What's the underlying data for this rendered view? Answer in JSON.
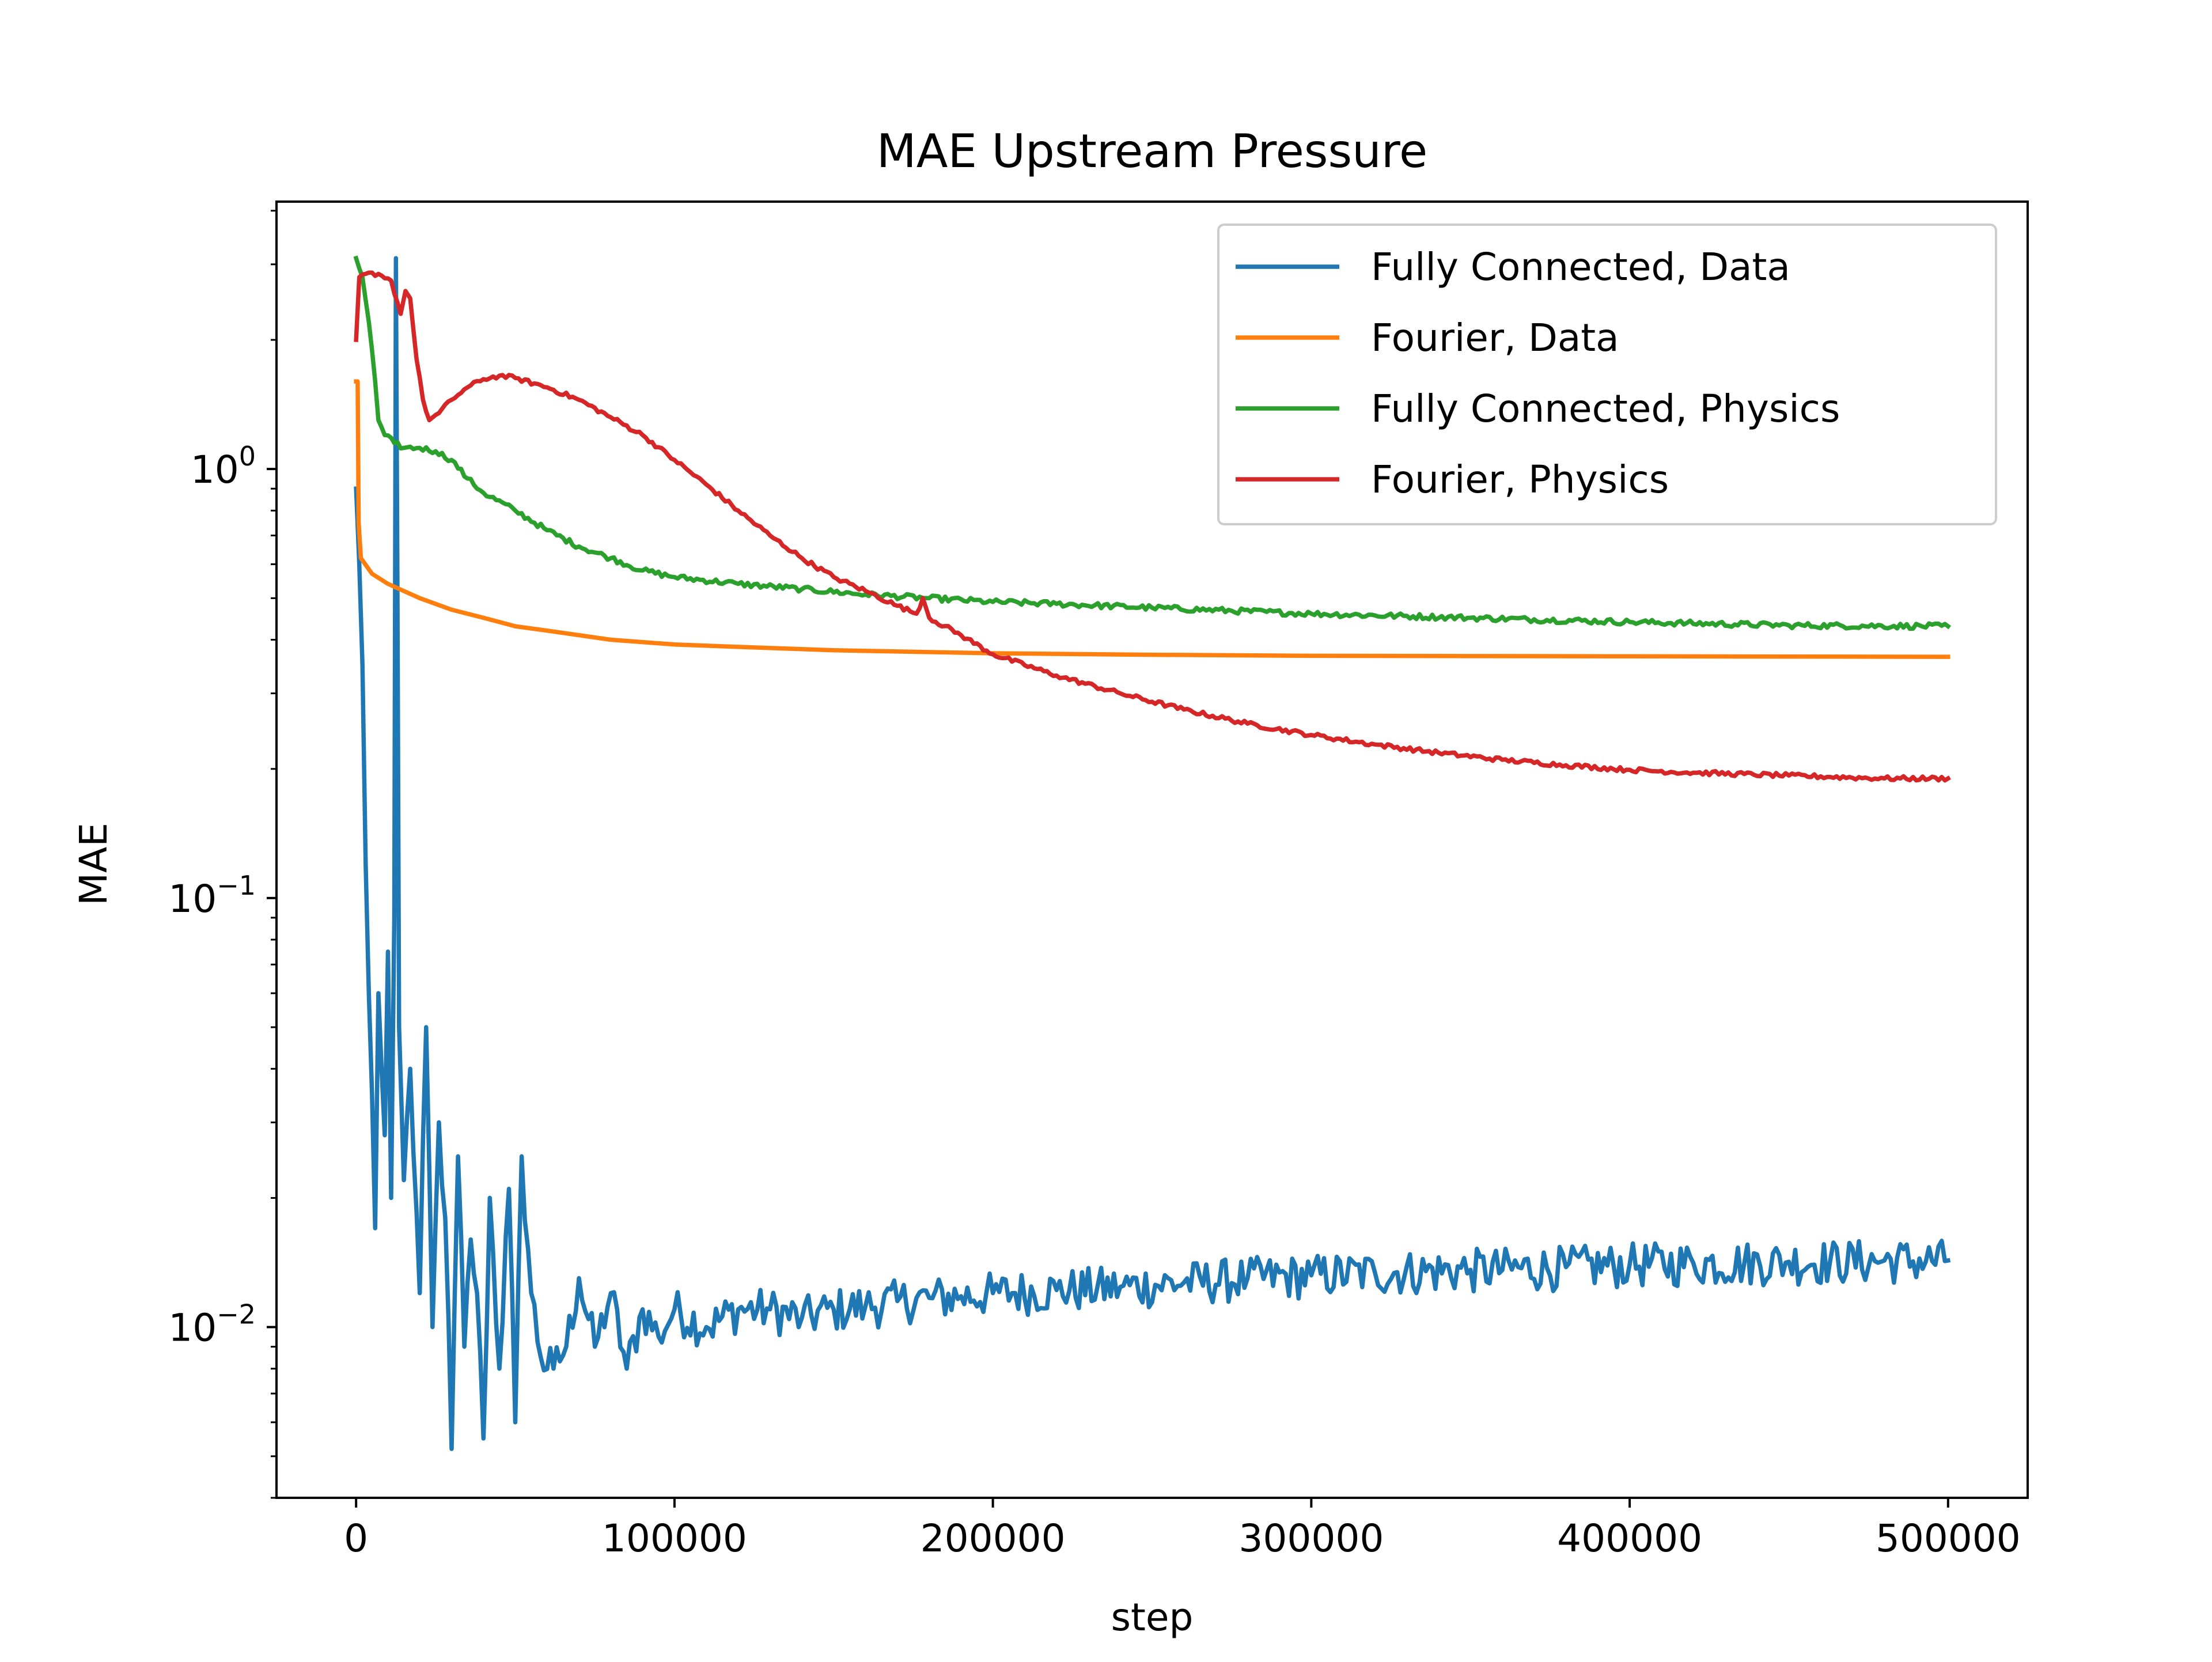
{
  "chart_data": {
    "type": "line",
    "title": "MAE Upstream Pressure",
    "xlabel": "step",
    "ylabel": "MAE",
    "xscale": "linear",
    "yscale": "log",
    "xlim": [
      -25000,
      525000
    ],
    "ylim": [
      0.004,
      4.2
    ],
    "x_ticks": [
      0,
      100000,
      200000,
      300000,
      400000,
      500000
    ],
    "x_tick_labels": [
      "0",
      "100000",
      "200000",
      "300000",
      "400000",
      "500000"
    ],
    "y_ticks": [
      0.01,
      0.1,
      1
    ],
    "y_tick_labels": [
      {
        "base": "10",
        "exp": "−2"
      },
      {
        "base": "10",
        "exp": "−1"
      },
      {
        "base": "10",
        "exp": "0"
      }
    ],
    "grid": false,
    "legend_position": "top-right",
    "series": [
      {
        "name": "Fully Connected, Data",
        "color": "#1f77b4",
        "noise": 0.12,
        "points": [
          [
            0,
            0.9
          ],
          [
            1000,
            0.6
          ],
          [
            2000,
            0.35
          ],
          [
            3000,
            0.12
          ],
          [
            4000,
            0.06
          ],
          [
            5000,
            0.035
          ],
          [
            6000,
            0.017
          ],
          [
            7000,
            0.06
          ],
          [
            8000,
            0.04
          ],
          [
            9000,
            0.028
          ],
          [
            10000,
            0.075
          ],
          [
            11000,
            0.02
          ],
          [
            12000,
            0.09
          ],
          [
            12500,
            3.1
          ],
          [
            13000,
            0.5
          ],
          [
            13500,
            0.05
          ],
          [
            15000,
            0.022
          ],
          [
            17000,
            0.04
          ],
          [
            20000,
            0.012
          ],
          [
            22000,
            0.05
          ],
          [
            24000,
            0.01
          ],
          [
            26000,
            0.03
          ],
          [
            28000,
            0.018
          ],
          [
            30000,
            0.0052
          ],
          [
            32000,
            0.025
          ],
          [
            34000,
            0.009
          ],
          [
            36000,
            0.016
          ],
          [
            38000,
            0.012
          ],
          [
            40000,
            0.0055
          ],
          [
            42000,
            0.02
          ],
          [
            45000,
            0.008
          ],
          [
            48000,
            0.021
          ],
          [
            50000,
            0.006
          ],
          [
            52000,
            0.025
          ],
          [
            55000,
            0.012
          ],
          [
            58000,
            0.0085
          ],
          [
            62000,
            0.008
          ],
          [
            66000,
            0.009
          ],
          [
            70000,
            0.013
          ],
          [
            75000,
            0.009
          ],
          [
            80000,
            0.012
          ],
          [
            85000,
            0.008
          ],
          [
            90000,
            0.011
          ],
          [
            95000,
            0.0095
          ],
          [
            100000,
            0.011
          ],
          [
            110000,
            0.01
          ],
          [
            120000,
            0.011
          ],
          [
            130000,
            0.011
          ],
          [
            140000,
            0.0105
          ],
          [
            150000,
            0.011
          ],
          [
            160000,
            0.0112
          ],
          [
            170000,
            0.0115
          ],
          [
            180000,
            0.0117
          ],
          [
            190000,
            0.0118
          ],
          [
            200000,
            0.012
          ],
          [
            220000,
            0.0122
          ],
          [
            240000,
            0.0124
          ],
          [
            260000,
            0.0127
          ],
          [
            280000,
            0.013
          ],
          [
            300000,
            0.0132
          ],
          [
            320000,
            0.0134
          ],
          [
            350000,
            0.0136
          ],
          [
            380000,
            0.0138
          ],
          [
            400000,
            0.014
          ],
          [
            420000,
            0.0141
          ],
          [
            450000,
            0.0142
          ],
          [
            480000,
            0.0143
          ],
          [
            500000,
            0.0143
          ]
        ]
      },
      {
        "name": "Fourier, Data",
        "color": "#ff7f0e",
        "noise": 0,
        "points": [
          [
            0,
            1.6
          ],
          [
            500,
            1.6
          ],
          [
            800,
            0.75
          ],
          [
            1500,
            0.62
          ],
          [
            5000,
            0.57
          ],
          [
            10000,
            0.54
          ],
          [
            20000,
            0.5
          ],
          [
            30000,
            0.47
          ],
          [
            40000,
            0.45
          ],
          [
            50000,
            0.43
          ],
          [
            60000,
            0.42
          ],
          [
            80000,
            0.4
          ],
          [
            100000,
            0.39
          ],
          [
            120000,
            0.385
          ],
          [
            150000,
            0.378
          ],
          [
            200000,
            0.372
          ],
          [
            250000,
            0.369
          ],
          [
            300000,
            0.367
          ],
          [
            400000,
            0.366
          ],
          [
            500000,
            0.365
          ]
        ]
      },
      {
        "name": "Fully Connected, Physics",
        "color": "#2ca02c",
        "noise": 0.015,
        "points": [
          [
            0,
            3.1
          ],
          [
            2000,
            2.8
          ],
          [
            4000,
            2.2
          ],
          [
            6000,
            1.6
          ],
          [
            7000,
            1.3
          ],
          [
            9000,
            1.2
          ],
          [
            12000,
            1.15
          ],
          [
            15000,
            1.12
          ],
          [
            20000,
            1.12
          ],
          [
            25000,
            1.1
          ],
          [
            30000,
            1.05
          ],
          [
            35000,
            0.95
          ],
          [
            40000,
            0.88
          ],
          [
            50000,
            0.8
          ],
          [
            60000,
            0.72
          ],
          [
            70000,
            0.66
          ],
          [
            80000,
            0.62
          ],
          [
            90000,
            0.58
          ],
          [
            100000,
            0.56
          ],
          [
            120000,
            0.54
          ],
          [
            140000,
            0.525
          ],
          [
            160000,
            0.51
          ],
          [
            180000,
            0.5
          ],
          [
            200000,
            0.49
          ],
          [
            220000,
            0.485
          ],
          [
            250000,
            0.475
          ],
          [
            300000,
            0.46
          ],
          [
            350000,
            0.45
          ],
          [
            400000,
            0.44
          ],
          [
            450000,
            0.432
          ],
          [
            500000,
            0.43
          ]
        ]
      },
      {
        "name": "Fourier, Physics",
        "color": "#d62728",
        "noise": 0.012,
        "points": [
          [
            0,
            2.0
          ],
          [
            1000,
            2.8
          ],
          [
            3000,
            2.85
          ],
          [
            7000,
            2.85
          ],
          [
            11000,
            2.75
          ],
          [
            14000,
            2.3
          ],
          [
            15500,
            2.6
          ],
          [
            17000,
            2.5
          ],
          [
            19000,
            1.8
          ],
          [
            21000,
            1.45
          ],
          [
            23000,
            1.3
          ],
          [
            26000,
            1.35
          ],
          [
            30000,
            1.45
          ],
          [
            35000,
            1.55
          ],
          [
            40000,
            1.62
          ],
          [
            45000,
            1.65
          ],
          [
            50000,
            1.63
          ],
          [
            60000,
            1.55
          ],
          [
            70000,
            1.45
          ],
          [
            80000,
            1.32
          ],
          [
            90000,
            1.2
          ],
          [
            100000,
            1.05
          ],
          [
            110000,
            0.92
          ],
          [
            120000,
            0.8
          ],
          [
            130000,
            0.7
          ],
          [
            140000,
            0.62
          ],
          [
            150000,
            0.56
          ],
          [
            160000,
            0.52
          ],
          [
            170000,
            0.48
          ],
          [
            176000,
            0.46
          ],
          [
            178000,
            0.5
          ],
          [
            180000,
            0.45
          ],
          [
            190000,
            0.41
          ],
          [
            200000,
            0.37
          ],
          [
            220000,
            0.33
          ],
          [
            240000,
            0.3
          ],
          [
            260000,
            0.275
          ],
          [
            280000,
            0.255
          ],
          [
            300000,
            0.24
          ],
          [
            320000,
            0.228
          ],
          [
            340000,
            0.218
          ],
          [
            360000,
            0.21
          ],
          [
            380000,
            0.204
          ],
          [
            400000,
            0.199
          ],
          [
            420000,
            0.196
          ],
          [
            450000,
            0.193
          ],
          [
            480000,
            0.19
          ],
          [
            500000,
            0.19
          ]
        ]
      }
    ]
  }
}
